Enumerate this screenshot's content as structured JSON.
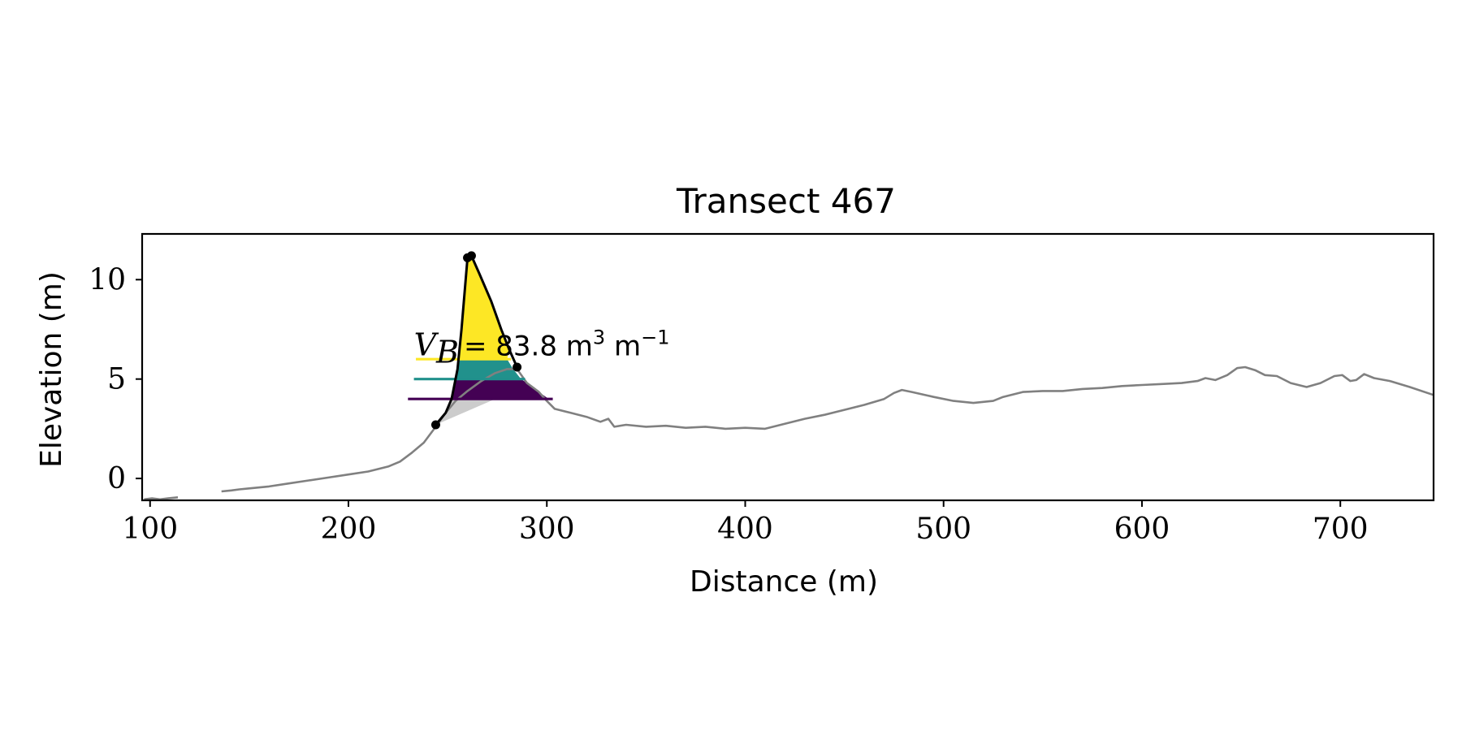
{
  "chart_data": {
    "type": "line",
    "title": "Transect 467",
    "xlabel": "Distance (m)",
    "ylabel": "Elevation (m)",
    "xlim": [
      96,
      747
    ],
    "ylim": [
      -1.1,
      12.3
    ],
    "xticks": [
      100,
      200,
      300,
      400,
      500,
      600,
      700
    ],
    "yticks": [
      0,
      5,
      10
    ],
    "grid": false,
    "profile": {
      "color": "#808080",
      "segments": [
        [
          [
            97,
            -1.05
          ],
          [
            101,
            -1.0
          ],
          [
            105,
            -1.05
          ],
          [
            109,
            -1.0
          ],
          [
            114,
            -0.95
          ]
        ],
        [
          [
            136,
            -0.65
          ],
          [
            141,
            -0.6
          ],
          [
            145,
            -0.55
          ],
          [
            150,
            -0.5
          ],
          [
            160,
            -0.4
          ],
          [
            170,
            -0.25
          ],
          [
            180,
            -0.1
          ],
          [
            190,
            0.05
          ],
          [
            200,
            0.2
          ],
          [
            210,
            0.35
          ],
          [
            220,
            0.6
          ],
          [
            226,
            0.85
          ],
          [
            232,
            1.3
          ],
          [
            238,
            1.8
          ],
          [
            244,
            2.6
          ],
          [
            249,
            3.3
          ],
          [
            254,
            3.9
          ],
          [
            260,
            4.4
          ],
          [
            267,
            4.9
          ],
          [
            274,
            5.3
          ],
          [
            280,
            5.5
          ],
          [
            285,
            5.5
          ],
          [
            290,
            4.8
          ],
          [
            296,
            4.35
          ],
          [
            300,
            3.9
          ],
          [
            304,
            3.5
          ],
          [
            312,
            3.3
          ],
          [
            320,
            3.1
          ],
          [
            327,
            2.85
          ],
          [
            331,
            3.0
          ],
          [
            334,
            2.6
          ],
          [
            340,
            2.7
          ],
          [
            350,
            2.6
          ],
          [
            360,
            2.65
          ],
          [
            370,
            2.55
          ],
          [
            380,
            2.6
          ],
          [
            390,
            2.5
          ],
          [
            400,
            2.55
          ],
          [
            410,
            2.5
          ],
          [
            420,
            2.75
          ],
          [
            430,
            3.0
          ],
          [
            440,
            3.2
          ],
          [
            450,
            3.45
          ],
          [
            460,
            3.7
          ],
          [
            470,
            4.0
          ],
          [
            475,
            4.3
          ],
          [
            479,
            4.45
          ],
          [
            484,
            4.35
          ],
          [
            495,
            4.1
          ],
          [
            505,
            3.9
          ],
          [
            515,
            3.8
          ],
          [
            525,
            3.9
          ],
          [
            530,
            4.1
          ],
          [
            540,
            4.35
          ],
          [
            550,
            4.4
          ],
          [
            560,
            4.4
          ],
          [
            570,
            4.5
          ],
          [
            580,
            4.55
          ],
          [
            590,
            4.65
          ],
          [
            600,
            4.7
          ],
          [
            610,
            4.75
          ],
          [
            620,
            4.8
          ],
          [
            628,
            4.9
          ],
          [
            632,
            5.05
          ],
          [
            637,
            4.95
          ],
          [
            643,
            5.2
          ],
          [
            648,
            5.55
          ],
          [
            652,
            5.6
          ],
          [
            657,
            5.45
          ],
          [
            662,
            5.2
          ],
          [
            668,
            5.15
          ],
          [
            675,
            4.8
          ],
          [
            683,
            4.6
          ],
          [
            690,
            4.8
          ],
          [
            697,
            5.15
          ],
          [
            701,
            5.2
          ],
          [
            705,
            4.9
          ],
          [
            708,
            4.95
          ],
          [
            712,
            5.25
          ],
          [
            717,
            5.05
          ],
          [
            725,
            4.9
          ],
          [
            735,
            4.6
          ],
          [
            747,
            4.2
          ]
        ]
      ]
    },
    "dune_outline": {
      "color": "#000000",
      "points": [
        [
          244,
          2.7
        ],
        [
          249,
          3.3
        ],
        [
          252,
          4.0
        ],
        [
          255,
          5.5
        ],
        [
          257,
          7.5
        ],
        [
          260,
          11.1
        ],
        [
          262,
          11.2
        ],
        [
          266,
          10.3
        ],
        [
          272,
          8.9
        ],
        [
          277,
          7.5
        ],
        [
          281,
          6.5
        ],
        [
          285,
          5.6
        ]
      ],
      "markers": [
        [
          244,
          2.7
        ],
        [
          260,
          11.1
        ],
        [
          262,
          11.2
        ],
        [
          285,
          5.6
        ]
      ]
    },
    "layers": [
      {
        "color": "#cccccc",
        "vertices": [
          [
            244,
            2.7
          ],
          [
            249,
            3.3
          ],
          [
            252,
            4.0
          ],
          [
            274,
            4.0
          ]
        ]
      },
      {
        "color": "#440154",
        "vertices": [
          [
            252,
            4.0
          ],
          [
            301,
            4.0
          ],
          [
            296,
            4.35
          ],
          [
            290,
            4.8
          ],
          [
            287,
            5.0
          ],
          [
            254,
            5.0
          ]
        ]
      },
      {
        "color": "#21918c",
        "vertices": [
          [
            254,
            5.0
          ],
          [
            287,
            5.0
          ],
          [
            283,
            5.5
          ],
          [
            280,
            6.0
          ],
          [
            255,
            6.0
          ]
        ]
      },
      {
        "color": "#fde725",
        "vertices": [
          [
            255,
            6.0
          ],
          [
            280,
            6.0
          ],
          [
            281,
            6.5
          ],
          [
            277,
            7.5
          ],
          [
            272,
            8.9
          ],
          [
            266,
            10.3
          ],
          [
            262,
            11.2
          ],
          [
            260,
            11.1
          ],
          [
            257,
            7.5
          ]
        ]
      }
    ],
    "levels": [
      {
        "color": "#440154",
        "y": 4.0,
        "x": [
          230,
          303
        ]
      },
      {
        "color": "#21918c",
        "y": 5.0,
        "x": [
          233,
          289
        ]
      },
      {
        "color": "#fde725",
        "y": 6.0,
        "x": [
          234,
          282
        ]
      }
    ],
    "annotation": {
      "symbol": "V",
      "subscript": "B",
      "text": "= 83.8 m",
      "unit_power": "3",
      "unit2": " m",
      "unit2_power": "−1",
      "x": 233,
      "y": 6.2
    }
  }
}
